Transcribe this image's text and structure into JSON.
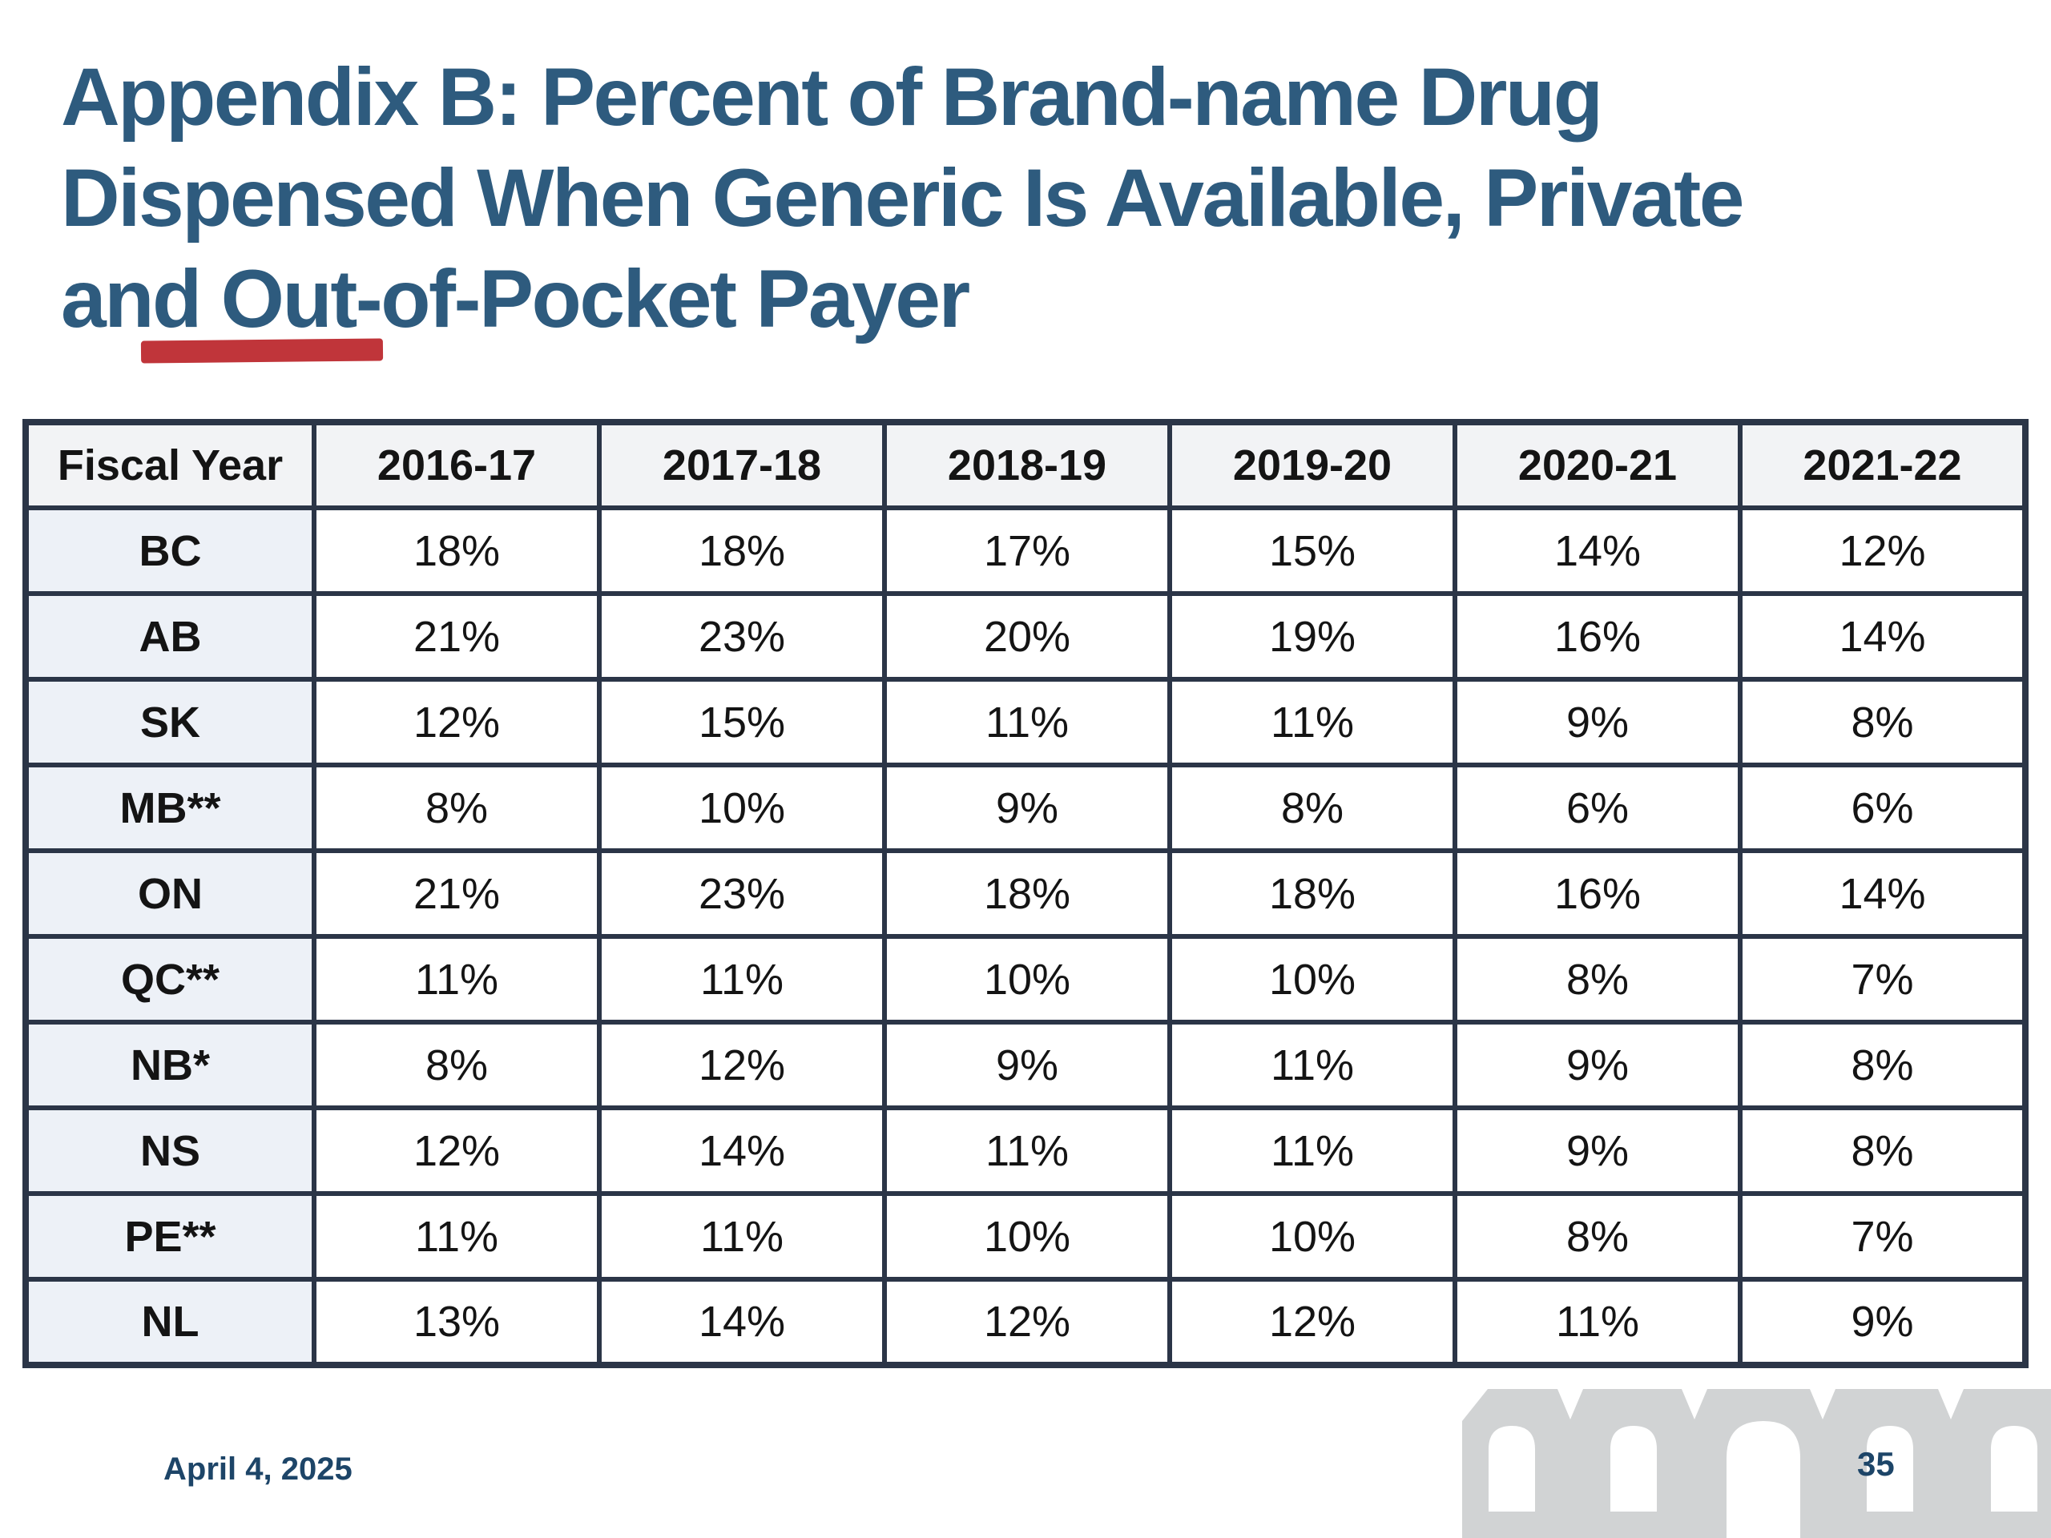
{
  "slide": {
    "title": "Appendix B: Percent of Brand-name Drug Dispensed When Generic Is Available, Private and Out-of-Pocket Payer",
    "title_lines": [
      "Appendix B: Percent of Brand-name Drug",
      "Dispensed When Generic Is Available, Private",
      "and Out-of-Pocket Payer"
    ],
    "footer_date": "April 4, 2025",
    "page_number": "35"
  },
  "table": {
    "header": [
      "Fiscal Year",
      "2016-17",
      "2017-18",
      "2018-19",
      "2019-20",
      "2020-21",
      "2021-22"
    ],
    "rows": [
      {
        "label": "BC",
        "values": [
          "18%",
          "18%",
          "17%",
          "15%",
          "14%",
          "12%"
        ]
      },
      {
        "label": "AB",
        "values": [
          "21%",
          "23%",
          "20%",
          "19%",
          "16%",
          "14%"
        ]
      },
      {
        "label": "SK",
        "values": [
          "12%",
          "15%",
          "11%",
          "11%",
          "9%",
          "8%"
        ]
      },
      {
        "label": "MB**",
        "values": [
          "8%",
          "10%",
          "9%",
          "8%",
          "6%",
          "6%"
        ]
      },
      {
        "label": "ON",
        "values": [
          "21%",
          "23%",
          "18%",
          "18%",
          "16%",
          "14%"
        ]
      },
      {
        "label": "QC**",
        "values": [
          "11%",
          "11%",
          "10%",
          "10%",
          "8%",
          "7%"
        ]
      },
      {
        "label": "NB*",
        "values": [
          "8%",
          "12%",
          "9%",
          "11%",
          "9%",
          "8%"
        ]
      },
      {
        "label": "NS",
        "values": [
          "12%",
          "14%",
          "11%",
          "11%",
          "9%",
          "8%"
        ]
      },
      {
        "label": "PE**",
        "values": [
          "11%",
          "11%",
          "10%",
          "10%",
          "8%",
          "7%"
        ]
      },
      {
        "label": "NL",
        "values": [
          "13%",
          "14%",
          "12%",
          "12%",
          "11%",
          "9%"
        ]
      }
    ]
  },
  "annotations": {
    "red_underline": {
      "under_text": "nd Out",
      "color": "#c0353a"
    }
  },
  "icons": {
    "logo": "parliament-arches-icon"
  },
  "colors": {
    "title_blue": "#2e5b7e",
    "footer_blue": "#1d4568",
    "table_border": "#2b3547",
    "header_bg": "#f2f3f5",
    "row_label_bg": "#edf1f7",
    "red_mark": "#c0353a",
    "logo_gray": "#d1d3d4"
  }
}
